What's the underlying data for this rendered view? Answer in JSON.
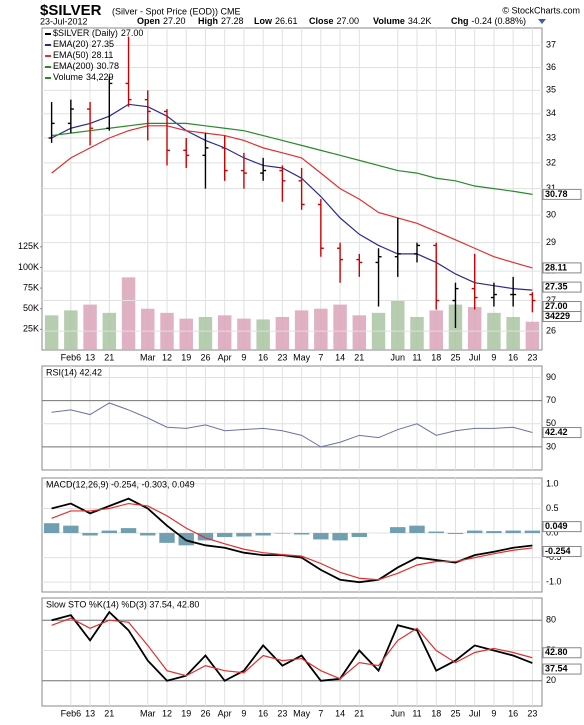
{
  "header": {
    "symbol": "$SILVER",
    "description": "(Silver - Spot Price (EOD)) CME",
    "source": "© StockCharts.com",
    "date": "23-Jul-2012",
    "quote": [
      [
        "Open",
        "27.20"
      ],
      [
        "High",
        "27.28"
      ],
      [
        "Low",
        "26.61"
      ],
      [
        "Close",
        "27.00"
      ],
      [
        "Volume",
        "34.2K"
      ],
      [
        "Chg",
        "-0.24 (0.88%)"
      ]
    ]
  },
  "chart_data": [
    {
      "type": "ohlc",
      "name": "$SILVER (Daily)",
      "close_label": "27.00",
      "categories": [
        null,
        "Feb6",
        "13",
        "21",
        null,
        "Mar",
        "12",
        "19",
        "26",
        "Apr",
        "9",
        "16",
        "23",
        "May",
        "7",
        "14",
        "21",
        null,
        "Jun",
        "11",
        "18",
        "25",
        "Jul",
        "9",
        "16",
        "23"
      ],
      "open": [
        33.0,
        33.6,
        34.2,
        33.4,
        35.3,
        34.6,
        34.1,
        32.5,
        32.3,
        32.6,
        31.7,
        31.6,
        31.7,
        31.3,
        30.4,
        28.8,
        28.4,
        28.3,
        28.5,
        28.6,
        28.9,
        27.0,
        27.4,
        27.1,
        27.2,
        27.2
      ],
      "high": [
        34.5,
        34.6,
        34.5,
        35.6,
        37.4,
        35.0,
        34.2,
        33.0,
        33.2,
        33.1,
        32.4,
        32.2,
        31.9,
        31.8,
        30.6,
        29.0,
        28.6,
        28.8,
        29.9,
        29.0,
        29.0,
        27.6,
        28.6,
        27.6,
        27.8,
        27.28
      ],
      "low": [
        32.8,
        33.2,
        32.7,
        33.3,
        34.3,
        32.9,
        31.9,
        31.8,
        31.0,
        31.3,
        31.0,
        31.3,
        30.5,
        30.2,
        28.5,
        27.6,
        27.8,
        26.8,
        27.8,
        28.3,
        26.7,
        26.1,
        26.7,
        26.8,
        26.8,
        26.61
      ],
      "close": [
        33.6,
        34.2,
        33.4,
        35.3,
        34.6,
        34.1,
        32.5,
        32.3,
        32.6,
        31.7,
        31.6,
        31.7,
        31.3,
        30.4,
        28.8,
        28.4,
        28.3,
        28.5,
        28.6,
        28.9,
        27.0,
        27.4,
        27.1,
        27.2,
        27.2,
        27.0
      ],
      "ylim": [
        25.4,
        37.8
      ],
      "log": true,
      "yticks": [
        26,
        27,
        28,
        29,
        30,
        31,
        32,
        33,
        34,
        35,
        36,
        37
      ],
      "grid": true,
      "up_color": "#000000",
      "down_color": "#cc0000",
      "series": [
        {
          "name": "EMA(20)",
          "color": "#2b2b8f",
          "values": [
            33.0,
            33.4,
            33.6,
            33.9,
            34.4,
            34.3,
            33.9,
            33.3,
            32.9,
            32.6,
            32.2,
            31.9,
            31.8,
            31.4,
            30.7,
            29.9,
            29.3,
            28.9,
            28.6,
            28.6,
            28.3,
            27.9,
            27.6,
            27.5,
            27.4,
            27.35
          ]
        },
        {
          "name": "EMA(50)",
          "color": "#e03030",
          "values": [
            31.6,
            32.2,
            32.6,
            33.0,
            33.3,
            33.5,
            33.5,
            33.3,
            33.2,
            33.1,
            32.9,
            32.6,
            32.4,
            32.2,
            31.6,
            31.0,
            30.6,
            30.1,
            29.9,
            29.7,
            29.4,
            29.1,
            28.8,
            28.5,
            28.3,
            28.11
          ]
        },
        {
          "name": "EMA(200)",
          "color": "#2a8a2a",
          "values": [
            33.1,
            33.2,
            33.3,
            33.4,
            33.5,
            33.6,
            33.6,
            33.6,
            33.5,
            33.4,
            33.3,
            33.1,
            32.9,
            32.7,
            32.5,
            32.3,
            32.1,
            31.9,
            31.7,
            31.6,
            31.4,
            31.3,
            31.1,
            31.0,
            30.9,
            30.78
          ]
        }
      ],
      "volume": {
        "name": "Volume",
        "last_label": "34,229",
        "up_color": "#a9c4a2",
        "down_color": "#d9a3b8",
        "values": [
          42000,
          48000,
          55000,
          45000,
          88000,
          50000,
          45000,
          38000,
          40000,
          42000,
          38000,
          37000,
          40000,
          48000,
          50000,
          55000,
          42000,
          45000,
          60000,
          40000,
          48000,
          55000,
          52000,
          45000,
          40000,
          34229
        ],
        "y2lim": [
          0,
          390000
        ],
        "y2ticks": [
          {
            "value": 25000,
            "label": "25K"
          },
          {
            "value": 50000,
            "label": "50K"
          },
          {
            "value": 75000,
            "label": "75K"
          },
          {
            "value": 100000,
            "label": "100K"
          },
          {
            "value": 125000,
            "label": "125K"
          }
        ]
      }
    },
    {
      "type": "rsi",
      "legend": "RSI(14) 42.42",
      "color": "#6a72a8",
      "values": [
        60,
        62,
        58,
        68,
        62,
        55,
        47,
        46,
        49,
        44,
        45,
        46,
        44,
        40,
        30,
        34,
        40,
        38,
        45,
        50,
        40,
        44,
        46,
        46,
        47,
        42.42
      ],
      "ylim": [
        10,
        100
      ],
      "yticks": [
        30,
        50,
        70,
        90
      ],
      "levels": [
        30,
        70
      ]
    },
    {
      "type": "macd",
      "legend": "MACD(12,26,9) -0.254, -0.303, 0.049",
      "series": [
        {
          "name": "MACD",
          "color": "#000000",
          "values": [
            0.5,
            0.6,
            0.4,
            0.55,
            0.7,
            0.5,
            0.15,
            -0.15,
            -0.25,
            -0.3,
            -0.4,
            -0.45,
            -0.45,
            -0.5,
            -0.75,
            -0.95,
            -1.0,
            -0.95,
            -0.7,
            -0.5,
            -0.55,
            -0.6,
            -0.45,
            -0.38,
            -0.3,
            -0.254
          ]
        },
        {
          "name": "Signal",
          "color": "#e03030",
          "values": [
            0.3,
            0.45,
            0.45,
            0.5,
            0.6,
            0.55,
            0.35,
            0.1,
            -0.1,
            -0.22,
            -0.33,
            -0.4,
            -0.44,
            -0.47,
            -0.62,
            -0.8,
            -0.92,
            -0.95,
            -0.82,
            -0.65,
            -0.58,
            -0.58,
            -0.5,
            -0.42,
            -0.35,
            -0.303
          ]
        }
      ],
      "histogram": {
        "color": "#6f9fb0",
        "values": [
          0.2,
          0.15,
          -0.05,
          0.05,
          0.1,
          -0.05,
          -0.2,
          -0.25,
          -0.15,
          -0.08,
          -0.07,
          -0.05,
          -0.01,
          -0.03,
          -0.13,
          -0.15,
          -0.08,
          0,
          0.12,
          0.15,
          0.03,
          -0.02,
          0.05,
          0.04,
          0.05,
          0.049
        ]
      },
      "ylim": [
        -1.2,
        1.12
      ],
      "yticks": [
        {
          "value": -1,
          "label": "-1.0"
        },
        {
          "value": -0.5,
          "label": "-0.5"
        },
        {
          "value": 0,
          "label": "0.0"
        },
        {
          "value": 0.5,
          "label": "0.5"
        },
        {
          "value": 1,
          "label": "1.0"
        }
      ]
    },
    {
      "type": "stoch",
      "legend": "Slow STO %K(14) %D(3) 37.54, 42.80",
      "last_d_label": "42.80",
      "series": [
        {
          "name": "%K",
          "color": "#000000",
          "values": [
            80,
            85,
            60,
            88,
            70,
            40,
            20,
            25,
            45,
            20,
            30,
            55,
            35,
            45,
            20,
            22,
            50,
            30,
            75,
            70,
            30,
            40,
            55,
            50,
            45,
            37.54
          ]
        },
        {
          "name": "%D",
          "color": "#e03030",
          "values": [
            75,
            82,
            72,
            80,
            78,
            55,
            30,
            25,
            35,
            30,
            28,
            45,
            40,
            42,
            30,
            22,
            38,
            35,
            60,
            72,
            50,
            38,
            48,
            52,
            48,
            42.8
          ]
        }
      ],
      "ylim": [
        -5,
        102
      ],
      "yticks": [
        20,
        50,
        80
      ],
      "levels": [
        20,
        80
      ]
    }
  ]
}
